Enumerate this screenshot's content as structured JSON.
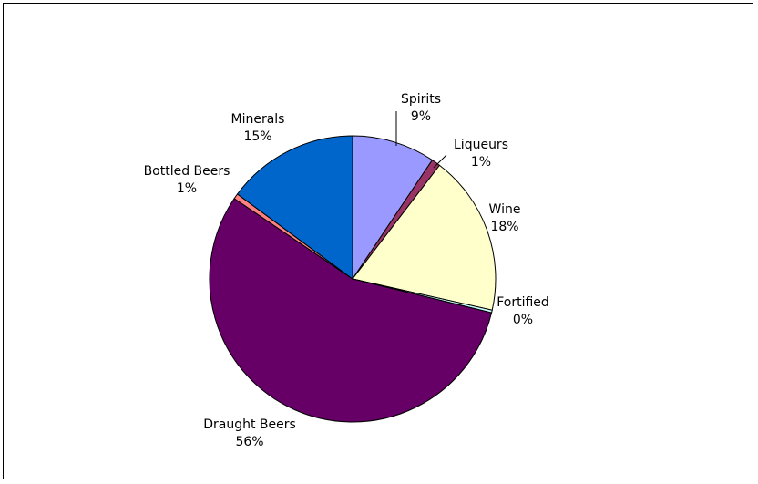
{
  "chart_data": {
    "type": "pie",
    "title": "",
    "legend": "none",
    "start_angle_deg": 0,
    "direction": "clockwise",
    "slices": [
      {
        "name": "Spirits",
        "value": 9.4,
        "label": "Spirits\n9%",
        "color": "#9999FF"
      },
      {
        "name": "Liqueurs",
        "value": 1.0,
        "label": "Liqueurs\n1%",
        "color": "#993366"
      },
      {
        "name": "Wine",
        "value": 18.1,
        "label": "Wine\n18%",
        "color": "#FFFFCC"
      },
      {
        "name": "Fortified",
        "value": 0.3,
        "label": "Fortified\n0%",
        "color": "#CCFFFF"
      },
      {
        "name": "Draught Beers",
        "value": 55.7,
        "label": "Draught Beers\n56%",
        "color": "#660066"
      },
      {
        "name": "Bottled Beers",
        "value": 0.6,
        "label": "Bottled Beers\n1%",
        "color": "#FF8080"
      },
      {
        "name": "Minerals",
        "value": 14.9,
        "label": "Minerals\n15%",
        "color": "#0066CC"
      }
    ]
  }
}
